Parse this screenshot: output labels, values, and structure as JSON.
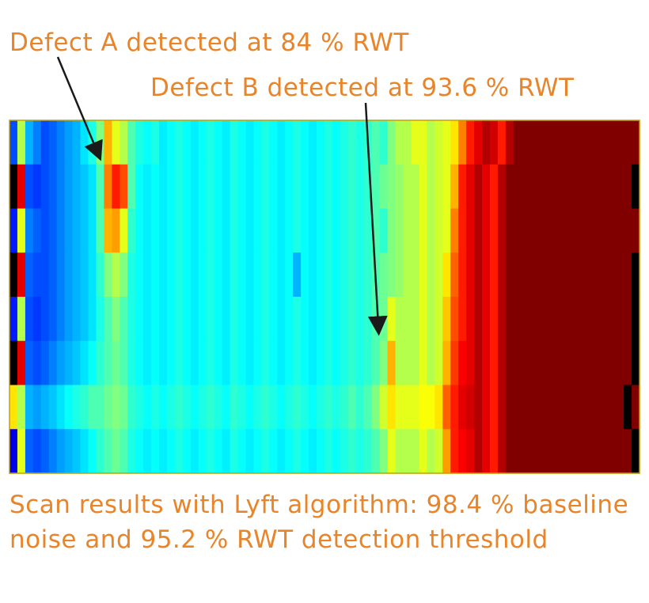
{
  "annotations": {
    "defect_a": "Defect A detected at 84 % RWT",
    "defect_b": "Defect B detected at 93.6 % RWT"
  },
  "caption": "Scan results with Lyft algorithm: 98.4 % baseline noise and 95.2 % RWT detection threshold",
  "colors": {
    "annotation_text": "#e8842a",
    "arrow": "#1a1a1a",
    "frame": "#c8a000"
  },
  "chart_data": {
    "type": "heatmap",
    "title": "",
    "xlabel": "",
    "ylabel": "",
    "rows": 8,
    "columns": 80,
    "colormap": "jet",
    "value_range": [
      0,
      1
    ],
    "row_profile": [
      0.25,
      0.2,
      0.25,
      0.22,
      0.25,
      0.25,
      0.3,
      0.27
    ],
    "approx_values": [
      [
        0.2,
        0.55,
        0.3,
        0.25,
        0.2,
        0.22,
        0.25,
        0.28,
        0.3,
        0.35,
        0.4,
        0.5,
        0.7,
        0.6,
        0.55,
        0.45,
        0.4,
        0.38,
        0.4,
        0.36,
        0.38,
        0.4,
        0.38,
        0.36,
        0.38,
        0.4,
        0.38,
        0.36,
        0.4,
        0.38,
        0.36,
        0.38,
        0.4,
        0.38,
        0.36,
        0.38,
        0.4,
        0.38,
        0.36,
        0.38,
        0.4,
        0.38,
        0.4,
        0.42,
        0.4,
        0.42,
        0.45,
        0.42,
        0.5,
        0.55,
        0.55,
        0.6,
        0.6,
        0.55,
        0.58,
        0.6,
        0.65,
        0.75,
        0.85,
        0.9,
        0.95,
        0.92,
        0.85,
        0.95,
        1,
        1,
        1,
        1,
        1,
        1,
        1,
        1,
        1,
        1,
        1,
        1,
        1,
        1,
        1,
        1
      ],
      [
        0.05,
        0.9,
        0.2,
        0.18,
        0.2,
        0.22,
        0.25,
        0.28,
        0.3,
        0.32,
        0.35,
        0.45,
        0.75,
        0.85,
        0.8,
        0.45,
        0.38,
        0.36,
        0.38,
        0.36,
        0.38,
        0.4,
        0.38,
        0.36,
        0.38,
        0.4,
        0.38,
        0.36,
        0.4,
        0.38,
        0.36,
        0.38,
        0.4,
        0.38,
        0.36,
        0.38,
        0.4,
        0.38,
        0.36,
        0.38,
        0.4,
        0.38,
        0.4,
        0.42,
        0.4,
        0.42,
        0.45,
        0.48,
        0.5,
        0.52,
        0.55,
        0.55,
        0.6,
        0.55,
        0.58,
        0.6,
        0.7,
        0.85,
        0.9,
        0.95,
        0.9,
        0.85,
        0.95,
        1,
        1,
        1,
        1,
        1,
        1,
        1,
        1,
        1,
        1,
        1,
        1,
        1,
        1,
        1,
        1,
        0.05
      ],
      [
        0.15,
        0.6,
        0.25,
        0.22,
        0.2,
        0.22,
        0.25,
        0.28,
        0.3,
        0.32,
        0.35,
        0.45,
        0.7,
        0.72,
        0.6,
        0.42,
        0.38,
        0.36,
        0.38,
        0.36,
        0.38,
        0.4,
        0.38,
        0.36,
        0.38,
        0.4,
        0.38,
        0.36,
        0.4,
        0.38,
        0.36,
        0.38,
        0.4,
        0.38,
        0.36,
        0.38,
        0.4,
        0.38,
        0.36,
        0.38,
        0.4,
        0.38,
        0.4,
        0.42,
        0.4,
        0.42,
        0.45,
        0.42,
        0.5,
        0.52,
        0.55,
        0.55,
        0.6,
        0.55,
        0.58,
        0.6,
        0.75,
        0.85,
        0.9,
        0.95,
        0.9,
        0.85,
        0.95,
        1,
        1,
        1,
        1,
        1,
        1,
        1,
        1,
        1,
        1,
        1,
        1,
        1,
        1,
        1,
        1,
        1
      ],
      [
        0.05,
        0.9,
        0.22,
        0.2,
        0.2,
        0.22,
        0.25,
        0.28,
        0.3,
        0.32,
        0.35,
        0.42,
        0.5,
        0.55,
        0.5,
        0.4,
        0.38,
        0.36,
        0.38,
        0.36,
        0.38,
        0.4,
        0.38,
        0.36,
        0.38,
        0.4,
        0.38,
        0.36,
        0.4,
        0.38,
        0.36,
        0.38,
        0.4,
        0.38,
        0.36,
        0.38,
        0.3,
        0.38,
        0.36,
        0.38,
        0.4,
        0.38,
        0.4,
        0.42,
        0.4,
        0.42,
        0.45,
        0.48,
        0.5,
        0.52,
        0.55,
        0.55,
        0.6,
        0.55,
        0.58,
        0.65,
        0.78,
        0.85,
        0.9,
        0.95,
        0.9,
        0.85,
        0.95,
        1,
        1,
        1,
        1,
        1,
        1,
        1,
        1,
        1,
        1,
        1,
        1,
        1,
        1,
        1,
        1,
        0.05
      ],
      [
        0.15,
        0.55,
        0.2,
        0.18,
        0.2,
        0.22,
        0.25,
        0.28,
        0.3,
        0.32,
        0.35,
        0.4,
        0.45,
        0.5,
        0.45,
        0.4,
        0.38,
        0.36,
        0.38,
        0.36,
        0.38,
        0.4,
        0.38,
        0.36,
        0.38,
        0.4,
        0.38,
        0.36,
        0.4,
        0.38,
        0.36,
        0.38,
        0.4,
        0.38,
        0.36,
        0.38,
        0.4,
        0.38,
        0.36,
        0.38,
        0.4,
        0.38,
        0.4,
        0.42,
        0.4,
        0.42,
        0.45,
        0.48,
        0.6,
        0.55,
        0.55,
        0.55,
        0.6,
        0.55,
        0.58,
        0.68,
        0.8,
        0.85,
        0.9,
        0.95,
        0.9,
        0.85,
        0.95,
        1,
        1,
        1,
        1,
        1,
        1,
        1,
        1,
        1,
        1,
        1,
        1,
        1,
        1,
        1,
        1,
        0.05
      ],
      [
        0.05,
        0.9,
        0.22,
        0.2,
        0.22,
        0.25,
        0.28,
        0.3,
        0.32,
        0.35,
        0.38,
        0.42,
        0.45,
        0.48,
        0.45,
        0.4,
        0.38,
        0.36,
        0.38,
        0.36,
        0.38,
        0.4,
        0.38,
        0.36,
        0.38,
        0.4,
        0.38,
        0.36,
        0.4,
        0.38,
        0.36,
        0.38,
        0.4,
        0.38,
        0.36,
        0.38,
        0.4,
        0.38,
        0.36,
        0.38,
        0.4,
        0.38,
        0.4,
        0.42,
        0.4,
        0.42,
        0.45,
        0.5,
        0.7,
        0.55,
        0.55,
        0.55,
        0.6,
        0.55,
        0.58,
        0.7,
        0.82,
        0.88,
        0.9,
        0.95,
        0.9,
        0.85,
        0.95,
        1,
        1,
        1,
        1,
        1,
        1,
        1,
        1,
        1,
        1,
        1,
        1,
        1,
        1,
        1,
        1,
        0.05
      ],
      [
        0.65,
        0.55,
        0.3,
        0.28,
        0.3,
        0.32,
        0.35,
        0.38,
        0.4,
        0.42,
        0.45,
        0.45,
        0.48,
        0.5,
        0.48,
        0.42,
        0.4,
        0.38,
        0.4,
        0.38,
        0.4,
        0.42,
        0.4,
        0.38,
        0.4,
        0.42,
        0.4,
        0.38,
        0.42,
        0.4,
        0.38,
        0.4,
        0.42,
        0.4,
        0.38,
        0.4,
        0.42,
        0.4,
        0.38,
        0.4,
        0.42,
        0.4,
        0.42,
        0.45,
        0.42,
        0.45,
        0.5,
        0.58,
        0.65,
        0.6,
        0.6,
        0.6,
        0.62,
        0.62,
        0.65,
        0.78,
        0.85,
        0.9,
        0.92,
        0.95,
        0.9,
        0.85,
        0.95,
        1,
        1,
        1,
        1,
        1,
        1,
        1,
        1,
        1,
        1,
        1,
        1,
        1,
        1,
        1,
        0.05,
        1
      ],
      [
        0.1,
        0.6,
        0.22,
        0.2,
        0.22,
        0.25,
        0.28,
        0.3,
        0.32,
        0.35,
        0.38,
        0.42,
        0.45,
        0.48,
        0.45,
        0.4,
        0.38,
        0.36,
        0.38,
        0.36,
        0.38,
        0.4,
        0.38,
        0.36,
        0.38,
        0.4,
        0.38,
        0.36,
        0.4,
        0.38,
        0.36,
        0.38,
        0.4,
        0.38,
        0.36,
        0.38,
        0.4,
        0.38,
        0.36,
        0.38,
        0.4,
        0.38,
        0.4,
        0.42,
        0.4,
        0.42,
        0.45,
        0.5,
        0.6,
        0.55,
        0.55,
        0.55,
        0.6,
        0.55,
        0.58,
        0.72,
        0.85,
        0.88,
        0.9,
        0.95,
        0.9,
        0.85,
        0.95,
        1,
        1,
        1,
        1,
        1,
        1,
        1,
        1,
        1,
        1,
        1,
        1,
        1,
        1,
        1,
        1,
        0.05
      ]
    ]
  }
}
